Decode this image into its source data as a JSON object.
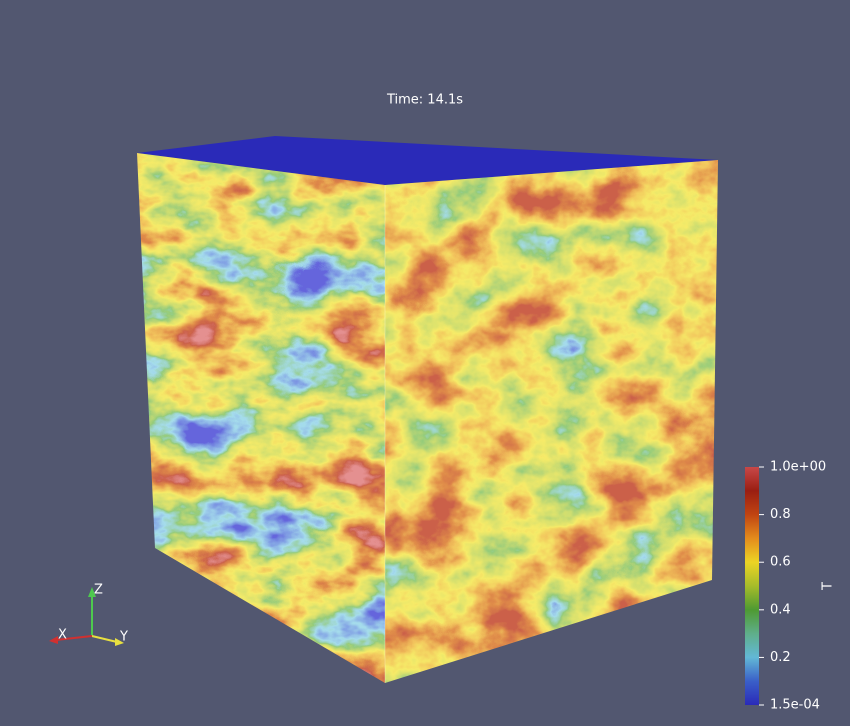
{
  "time_label": "Time: 14.1s",
  "colorbar": {
    "title": "T",
    "ticks": [
      {
        "value": 0.00015,
        "label": "1.5e-04"
      },
      0.2,
      0.4,
      0.6,
      0.8,
      {
        "value": 1,
        "label": "1.0e+00"
      }
    ]
  },
  "axes_triad": {
    "x": "X",
    "y": "Y",
    "z": "Z"
  }
}
